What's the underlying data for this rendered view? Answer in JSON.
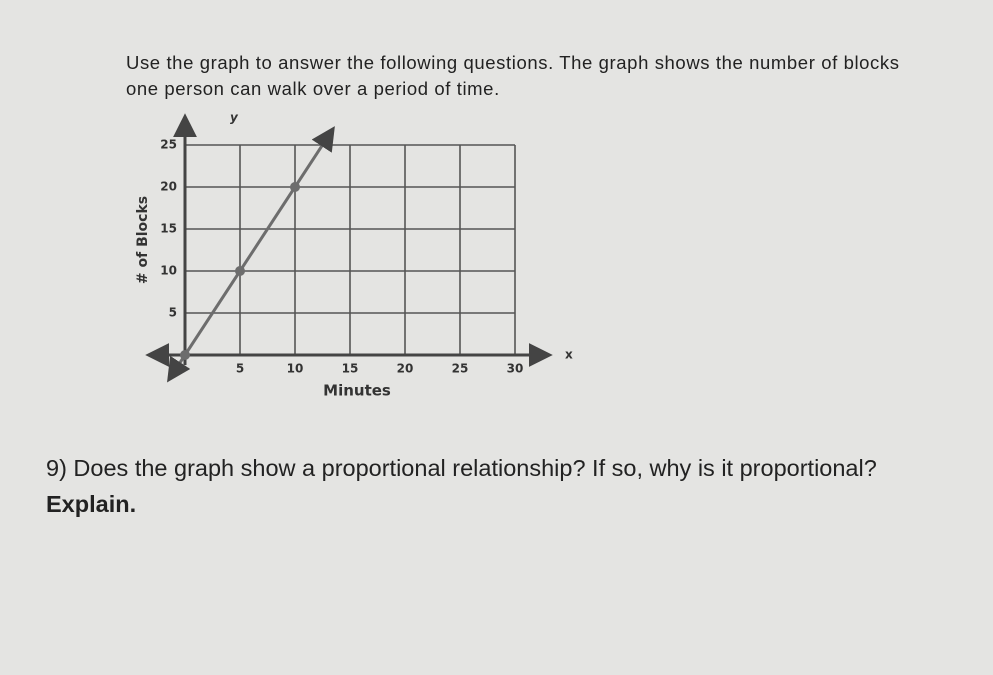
{
  "intro": "Use the graph to answer the following questions.  The graph shows the number of blocks one person can walk over a period of time.",
  "question": {
    "text": "9) Does the graph show a proportional relationship? If so, why is it proportional?",
    "emphasis": "Explain."
  },
  "chart_data": {
    "type": "line",
    "x_label": "Minutes",
    "y_label": "# of Blocks",
    "x_axis_name": "x",
    "y_axis_name": "y",
    "x": [
      0,
      5,
      10
    ],
    "series": [
      {
        "color": "#6d6d6d",
        "values": [
          0,
          10,
          20
        ]
      }
    ],
    "xlim": [
      0,
      30
    ],
    "ylim": [
      0,
      25
    ],
    "xticks": [
      5,
      10,
      15,
      20,
      25,
      30
    ],
    "yticks": [
      5,
      10,
      15,
      20,
      25
    ],
    "grid": true
  }
}
